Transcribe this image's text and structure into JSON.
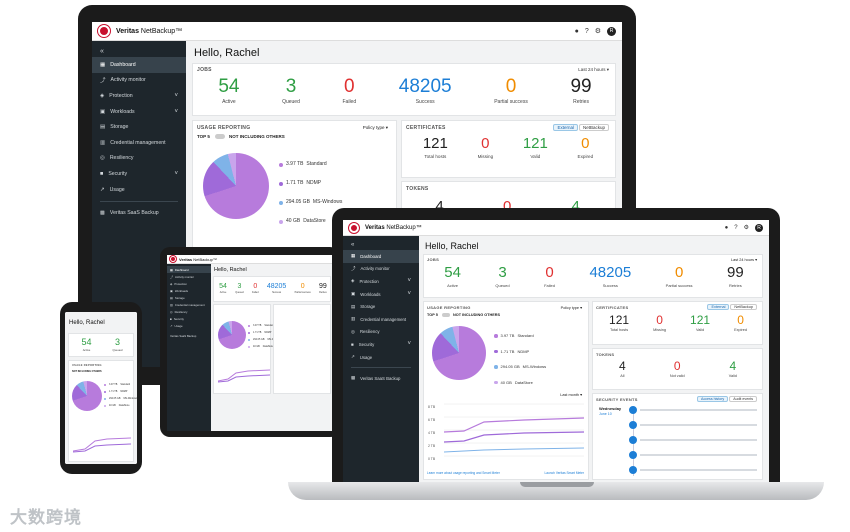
{
  "brand": {
    "name": "Veritas",
    "product": "NetBackup™"
  },
  "greeting": "Hello, Rachel",
  "topbar": {
    "bell": "🔔",
    "help": "?",
    "settings": "⚙",
    "avatar": "R"
  },
  "sidebar": {
    "collapse": "«",
    "items": [
      {
        "label": "Dashboard",
        "icon": "dashboard-icon",
        "glyph": "▦"
      },
      {
        "label": "Activity monitor",
        "icon": "activity-icon",
        "glyph": "⤴"
      },
      {
        "label": "Protection",
        "icon": "shield-icon",
        "glyph": "◈"
      },
      {
        "label": "Workloads",
        "icon": "workloads-icon",
        "glyph": "▣"
      },
      {
        "label": "Storage",
        "icon": "storage-icon",
        "glyph": "▤"
      },
      {
        "label": "Credential management",
        "icon": "credential-icon",
        "glyph": "▥"
      },
      {
        "label": "Resiliency",
        "icon": "resiliency-icon",
        "glyph": "◎"
      },
      {
        "label": "Security",
        "icon": "lock-icon",
        "glyph": "■"
      },
      {
        "label": "Usage",
        "icon": "usage-icon",
        "glyph": "↗"
      }
    ],
    "extra": "Veritas SaaS Backup"
  },
  "jobs": {
    "title": "JOBS",
    "range": "Last 24 hours",
    "kpis": [
      {
        "value": "54",
        "label": "Active",
        "color": "#2f9e44"
      },
      {
        "value": "3",
        "label": "Queued",
        "color": "#2f9e44"
      },
      {
        "value": "0",
        "label": "Failed",
        "color": "#e03131"
      },
      {
        "value": "48205",
        "label": "Success",
        "color": "#1c7ed6"
      },
      {
        "value": "0",
        "label": "Partial success",
        "color": "#f08c00"
      },
      {
        "value": "99",
        "label": "Retries",
        "color": "#222222"
      }
    ]
  },
  "usage": {
    "title": "USAGE REPORTING",
    "policy": "Policy type",
    "top": "TOP 5",
    "toggle_label": "NOT INCLUDING OTHERS",
    "legend": [
      {
        "value": "3.97 TB",
        "name": "Standard",
        "color": "#b77bdc"
      },
      {
        "value": "1.71 TB",
        "name": "NDMP",
        "color": "#9f6ad9"
      },
      {
        "value": "294.05 GB",
        "name": "MS-Windows",
        "color": "#7fb3e8"
      },
      {
        "value": "40 GB",
        "name": "DataStore",
        "color": "#c9a5ec"
      }
    ],
    "chart_range": "Last month",
    "ticks": [
      "8 TB",
      "6 TB",
      "4 TB",
      "2 TB",
      "0 TB"
    ],
    "learn": "Learn more about usage reporting and Smart Meter",
    "launch": "Launch Veritas Smart Meter"
  },
  "certificates": {
    "title": "CERTIFICATES",
    "tabs": [
      "External",
      "NetBackup"
    ],
    "kpis": [
      {
        "value": "121",
        "label": "Total hosts",
        "color": "#222222"
      },
      {
        "value": "0",
        "label": "Missing",
        "color": "#e03131"
      },
      {
        "value": "121",
        "label": "Valid",
        "color": "#2f9e44"
      },
      {
        "value": "0",
        "label": "Expired",
        "color": "#f08c00"
      }
    ]
  },
  "tokens": {
    "title": "TOKENS",
    "kpis": [
      {
        "value": "4",
        "label": "All",
        "color": "#222222"
      },
      {
        "value": "0",
        "label": "Not valid",
        "color": "#e03131"
      },
      {
        "value": "4",
        "label": "Valid",
        "color": "#2f9e44"
      }
    ]
  },
  "security_events": {
    "title": "SECURITY EVENTS",
    "tabs": [
      "Access history",
      "Audit events"
    ],
    "day": "Wednesday",
    "date": "June 10"
  },
  "phone": {
    "greeting": "Hello, Rachel",
    "kpis": [
      {
        "value": "54",
        "label": "Active"
      },
      {
        "value": "3",
        "label": "Queued"
      }
    ]
  },
  "watermark": "大数跨境"
}
